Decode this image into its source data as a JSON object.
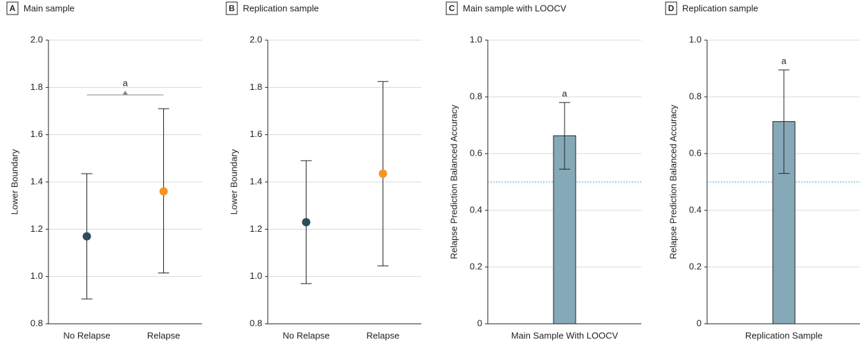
{
  "chart_data": [
    {
      "type": "dot",
      "panel_label": "A",
      "title": "Main sample",
      "y_label": "Lower Boundary",
      "categories": [
        "No Relapse",
        "Relapse"
      ],
      "values": [
        1.17,
        1.36
      ],
      "lower": [
        0.905,
        1.015
      ],
      "upper": [
        1.435,
        1.71
      ],
      "colors": [
        "#2d4c5c",
        "#f7941d"
      ],
      "annotation": "a",
      "ylim": [
        0.8,
        2.0
      ],
      "yticks": [
        0.8,
        {
          "value": 1,
          "label": "1.0"
        },
        1.2,
        1.4,
        1.6,
        1.8,
        {
          "value": 2,
          "label": "2.0"
        }
      ],
      "grid": true
    },
    {
      "type": "dot",
      "panel_label": "B",
      "title": "Replication sample",
      "y_label": "Lower Boundary",
      "categories": [
        "No Relapse",
        "Relapse"
      ],
      "values": [
        1.23,
        1.435
      ],
      "lower": [
        0.97,
        1.045
      ],
      "upper": [
        1.49,
        1.825
      ],
      "colors": [
        "#2d4c5c",
        "#f7941d"
      ],
      "ylim": [
        0.8,
        2.0
      ],
      "yticks": [
        0.8,
        {
          "value": 1,
          "label": "1.0"
        },
        1.2,
        1.4,
        1.6,
        1.8,
        {
          "value": 2,
          "label": "2.0"
        }
      ],
      "grid": true
    },
    {
      "type": "bar",
      "panel_label": "C",
      "title": "Main sample with LOOCV",
      "y_label": "Relapse Prediction Balanced Accuracy",
      "categories": [
        "Main Sample With LOOCV"
      ],
      "values": [
        0.663
      ],
      "lower": [
        0.545
      ],
      "upper": [
        0.78
      ],
      "color": "#86a9b8",
      "annotation": "a",
      "reference_line": 0.5,
      "ylim": [
        0,
        1
      ],
      "yticks": [
        0,
        0.2,
        0.4,
        0.6,
        0.8,
        {
          "value": 1,
          "label": "1.0"
        }
      ],
      "grid": true
    },
    {
      "type": "bar",
      "panel_label": "D",
      "title": "Replication sample",
      "y_label": "Relapse Prediction Balanced Accuracy",
      "categories": [
        "Replication Sample"
      ],
      "values": [
        0.713
      ],
      "lower": [
        0.53
      ],
      "upper": [
        0.895
      ],
      "color": "#86a9b8",
      "annotation": "a",
      "reference_line": 0.5,
      "ylim": [
        0,
        1
      ],
      "yticks": [
        0,
        0.2,
        0.4,
        0.6,
        0.8,
        {
          "value": 1,
          "label": "1.0"
        }
      ],
      "grid": true
    }
  ]
}
